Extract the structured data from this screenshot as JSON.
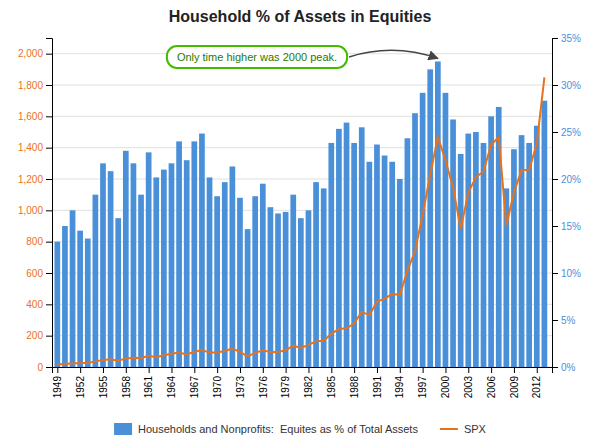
{
  "chart_data": {
    "type": "bar",
    "title": "Household % of Assets in Equities",
    "annotations": [
      "Only time higher was 2000 peak."
    ],
    "x": [
      1949,
      1950,
      1951,
      1952,
      1953,
      1954,
      1955,
      1956,
      1957,
      1958,
      1959,
      1960,
      1961,
      1962,
      1963,
      1964,
      1965,
      1966,
      1967,
      1968,
      1969,
      1970,
      1971,
      1972,
      1973,
      1974,
      1975,
      1976,
      1977,
      1978,
      1979,
      1980,
      1981,
      1982,
      1983,
      1984,
      1985,
      1986,
      1987,
      1988,
      1989,
      1990,
      1991,
      1992,
      1993,
      1994,
      1995,
      1996,
      1997,
      1998,
      1999,
      2000,
      2001,
      2002,
      2003,
      2004,
      2005,
      2006,
      2007,
      2008,
      2009,
      2010,
      2011,
      2012,
      2013
    ],
    "series": [
      {
        "name": "Households and Nonprofits:  Equites as % of Total Assets",
        "type": "bar",
        "color": "#4a90d9",
        "values": [
          800,
          900,
          1000,
          870,
          820,
          1100,
          1300,
          1250,
          950,
          1380,
          1300,
          1100,
          1370,
          1210,
          1260,
          1300,
          1440,
          1320,
          1440,
          1490,
          1210,
          1090,
          1180,
          1280,
          1080,
          880,
          1090,
          1170,
          1020,
          980,
          990,
          1100,
          950,
          1000,
          1180,
          1140,
          1430,
          1520,
          1560,
          1430,
          1530,
          1310,
          1420,
          1350,
          1310,
          1200,
          1460,
          1620,
          1750,
          1900,
          1950,
          1750,
          1580,
          1360,
          1490,
          1500,
          1430,
          1600,
          1660,
          1140,
          1390,
          1480,
          1430,
          1540,
          1700
        ]
      },
      {
        "name": "SPX",
        "type": "line",
        "color": "#e8721c",
        "values": [
          16,
          20,
          23,
          26,
          26,
          36,
          45,
          49,
          40,
          55,
          59,
          58,
          72,
          63,
          75,
          84,
          92,
          80,
          97,
          108,
          92,
          92,
          102,
          118,
          97,
          68,
          90,
          107,
          95,
          96,
          107,
          136,
          122,
          141,
          165,
          167,
          212,
          242,
          247,
          277,
          353,
          330,
          417,
          435,
          467,
          459,
          615,
          740,
          970,
          1229,
          1469,
          1320,
          1148,
          880,
          1112,
          1212,
          1248,
          1418,
          1468,
          903,
          1115,
          1258,
          1258,
          1426,
          1848
        ]
      }
    ],
    "xlim": [
      1948.3,
      2014.0
    ],
    "xticks": [
      1949,
      1952,
      1955,
      1958,
      1961,
      1964,
      1967,
      1970,
      1973,
      1976,
      1979,
      1982,
      1985,
      1988,
      1991,
      1994,
      1997,
      2000,
      2003,
      2006,
      2009,
      2012
    ],
    "ylim": [
      0,
      2100
    ],
    "yticks": [
      0,
      200,
      400,
      600,
      800,
      {
        "value": 1000,
        "label": "1,000"
      },
      {
        "value": 1200,
        "label": "1,200"
      },
      {
        "value": 1400,
        "label": "1,400"
      },
      {
        "value": 1600,
        "label": "1,600"
      },
      {
        "value": 1800,
        "label": "1,800"
      },
      {
        "value": 2000,
        "label": "2,000"
      }
    ],
    "y2lim": [
      0,
      0.35
    ],
    "y2ticks": [
      {
        "value": 0,
        "label": "0%"
      },
      {
        "value": 0.05,
        "label": "5%"
      },
      {
        "value": 0.1,
        "label": "10%"
      },
      {
        "value": 0.15,
        "label": "15%"
      },
      {
        "value": 0.2,
        "label": "20%"
      },
      {
        "value": 0.25,
        "label": "25%"
      },
      {
        "value": 0.3,
        "label": "30%"
      },
      {
        "value": 0.35,
        "label": "35%"
      }
    ],
    "grid": true,
    "legend": "bottom"
  }
}
